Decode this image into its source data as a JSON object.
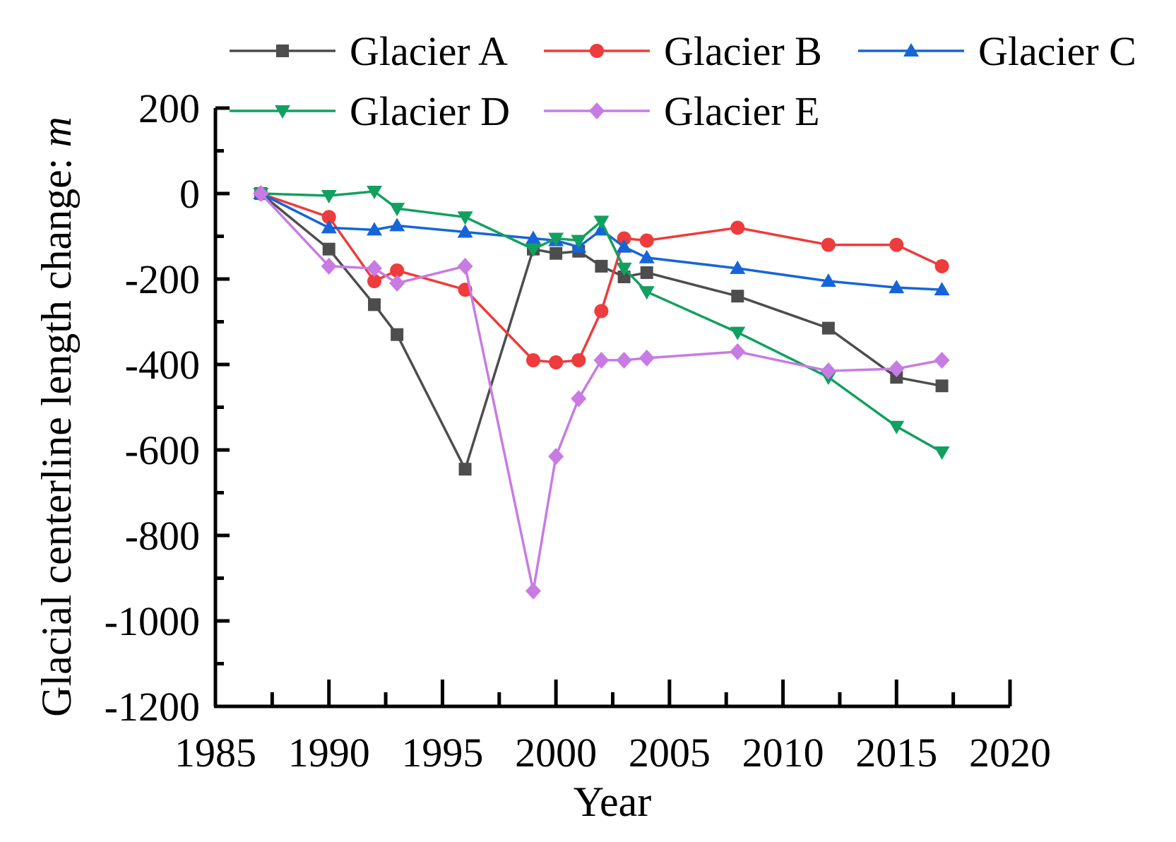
{
  "chart_data": {
    "type": "line",
    "xlabel": "Year",
    "ylabel": "Glacial centerline length change: ",
    "ylabel_unit": "m",
    "xlim": [
      1985,
      2020
    ],
    "ylim": [
      -1200,
      200
    ],
    "xticks": [
      "1985",
      "1990",
      "1995",
      "2000",
      "2005",
      "2010",
      "2015",
      "2020"
    ],
    "yticks": [
      "200",
      "0",
      "-200",
      "-400",
      "-600",
      "-800",
      "-1000",
      "-1200"
    ],
    "legend_position": "top",
    "series": [
      {
        "name": "Glacier A",
        "color": "#4d4d4d",
        "marker": "square",
        "x": [
          1987,
          1990,
          1992,
          1993,
          1996,
          1999,
          2000,
          2001,
          2002,
          2003,
          2004,
          2008,
          2012,
          2015,
          2017
        ],
        "y": [
          0,
          -130,
          -260,
          -330,
          -645,
          -130,
          -140,
          -135,
          -170,
          -195,
          -185,
          -240,
          -315,
          -430,
          -450
        ]
      },
      {
        "name": "Glacier B",
        "color": "#ee3b3b",
        "marker": "circle",
        "x": [
          1987,
          1990,
          1992,
          1993,
          1996,
          1999,
          2000,
          2001,
          2002,
          2003,
          2004,
          2008,
          2012,
          2015,
          2017
        ],
        "y": [
          0,
          -55,
          -205,
          -180,
          -225,
          -390,
          -395,
          -390,
          -275,
          -105,
          -110,
          -80,
          -120,
          -120,
          -170
        ]
      },
      {
        "name": "Glacier C",
        "color": "#1565d8",
        "marker": "triangle-up",
        "x": [
          1987,
          1990,
          1992,
          1993,
          1996,
          1999,
          2000,
          2001,
          2002,
          2003,
          2004,
          2008,
          2012,
          2015,
          2017
        ],
        "y": [
          0,
          -80,
          -85,
          -75,
          -90,
          -105,
          -110,
          -125,
          -85,
          -125,
          -150,
          -175,
          -205,
          -220,
          -225
        ]
      },
      {
        "name": "Glacier D",
        "color": "#11a060",
        "marker": "triangle-down",
        "x": [
          1987,
          1990,
          1992,
          1993,
          1996,
          1999,
          2000,
          2001,
          2002,
          2003,
          2004,
          2008,
          2012,
          2015,
          2017
        ],
        "y": [
          0,
          -5,
          5,
          -35,
          -55,
          -130,
          -105,
          -110,
          -65,
          -175,
          -230,
          -325,
          -430,
          -545,
          -605
        ]
      },
      {
        "name": "Glacier E",
        "color": "#c77be3",
        "marker": "diamond",
        "x": [
          1987,
          1990,
          1992,
          1993,
          1996,
          1999,
          2000,
          2001,
          2002,
          2003,
          2004,
          2008,
          2012,
          2015,
          2017
        ],
        "y": [
          0,
          -170,
          -175,
          -210,
          -170,
          -930,
          -615,
          -480,
          -390,
          -390,
          -385,
          -370,
          -415,
          -410,
          -390
        ]
      }
    ]
  }
}
